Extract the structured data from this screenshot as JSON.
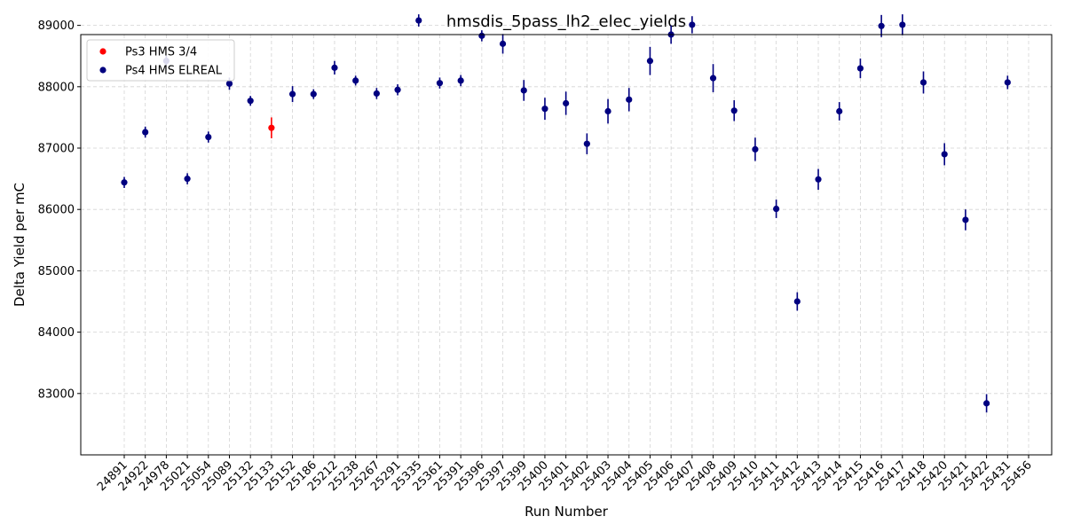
{
  "chart_data": {
    "type": "scatter",
    "title": "hmsdis_5pass_lh2_elec_yields",
    "xlabel": "Run Number",
    "ylabel": "Delta Yield per mC",
    "ylim": [
      82000,
      88850
    ],
    "yticks": [
      83000,
      84000,
      85000,
      86000,
      87000,
      88000,
      89000
    ],
    "grid": true,
    "error_bars": true,
    "legend_position": "top-left",
    "categories": [
      "24891",
      "24922",
      "24978",
      "25021",
      "25054",
      "25089",
      "25132",
      "25133",
      "25152",
      "25186",
      "25212",
      "25238",
      "25267",
      "25291",
      "25335",
      "25361",
      "25391",
      "25396",
      "25397",
      "25399",
      "25400",
      "25401",
      "25402",
      "25403",
      "25404",
      "25405",
      "25406",
      "25407",
      "25408",
      "25409",
      "25410",
      "25411",
      "25412",
      "25413",
      "25414",
      "25415",
      "25416",
      "25417",
      "25418",
      "25420",
      "25421",
      "25422",
      "25431",
      "25456"
    ],
    "series": [
      {
        "name": "Ps3 HMS 3/4",
        "color": "#ff0000",
        "points": [
          {
            "x": "25133",
            "y": 87330,
            "err": 170
          }
        ]
      },
      {
        "name": "Ps4 HMS ELREAL",
        "color": "#000080",
        "points": [
          {
            "x": "24891",
            "y": 86440,
            "err": 90
          },
          {
            "x": "24922",
            "y": 87260,
            "err": 90
          },
          {
            "x": "24978",
            "y": 88420,
            "err": 90
          },
          {
            "x": "25021",
            "y": 86500,
            "err": 90
          },
          {
            "x": "25054",
            "y": 87180,
            "err": 90
          },
          {
            "x": "25089",
            "y": 88050,
            "err": 100
          },
          {
            "x": "25132",
            "y": 87770,
            "err": 80
          },
          {
            "x": "25152",
            "y": 87880,
            "err": 130
          },
          {
            "x": "25186",
            "y": 87880,
            "err": 80
          },
          {
            "x": "25212",
            "y": 88310,
            "err": 110
          },
          {
            "x": "25238",
            "y": 88100,
            "err": 80
          },
          {
            "x": "25267",
            "y": 87890,
            "err": 90
          },
          {
            "x": "25291",
            "y": 87950,
            "err": 90
          },
          {
            "x": "25335",
            "y": 89080,
            "err": 100
          },
          {
            "x": "25361",
            "y": 88060,
            "err": 90
          },
          {
            "x": "25391",
            "y": 88100,
            "err": 90
          },
          {
            "x": "25396",
            "y": 88830,
            "err": 90
          },
          {
            "x": "25397",
            "y": 88700,
            "err": 160
          },
          {
            "x": "25399",
            "y": 87940,
            "err": 170
          },
          {
            "x": "25400",
            "y": 87640,
            "err": 180
          },
          {
            "x": "25401",
            "y": 87730,
            "err": 190
          },
          {
            "x": "25402",
            "y": 87070,
            "err": 170
          },
          {
            "x": "25403",
            "y": 87600,
            "err": 200
          },
          {
            "x": "25404",
            "y": 87790,
            "err": 190
          },
          {
            "x": "25405",
            "y": 88420,
            "err": 230
          },
          {
            "x": "25406",
            "y": 88850,
            "err": 150
          },
          {
            "x": "25407",
            "y": 89010,
            "err": 140
          },
          {
            "x": "25408",
            "y": 88140,
            "err": 230
          },
          {
            "x": "25409",
            "y": 87610,
            "err": 170
          },
          {
            "x": "25410",
            "y": 86980,
            "err": 190
          },
          {
            "x": "25411",
            "y": 86010,
            "err": 150
          },
          {
            "x": "25412",
            "y": 84500,
            "err": 150
          },
          {
            "x": "25413",
            "y": 86490,
            "err": 170
          },
          {
            "x": "25414",
            "y": 87600,
            "err": 150
          },
          {
            "x": "25415",
            "y": 88300,
            "err": 160
          },
          {
            "x": "25416",
            "y": 88990,
            "err": 180
          },
          {
            "x": "25417",
            "y": 89010,
            "err": 170
          },
          {
            "x": "25418",
            "y": 88070,
            "err": 180
          },
          {
            "x": "25420",
            "y": 86900,
            "err": 180
          },
          {
            "x": "25421",
            "y": 85830,
            "err": 170
          },
          {
            "x": "25422",
            "y": 82840,
            "err": 150
          },
          {
            "x": "25431",
            "y": 88070,
            "err": 110
          }
        ]
      }
    ]
  }
}
